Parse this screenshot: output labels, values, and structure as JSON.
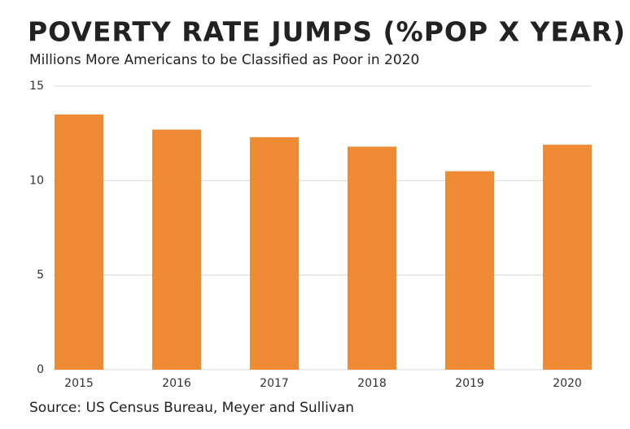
{
  "chart_data": {
    "type": "bar",
    "title": "POVERTY RATE JUMPS (%POP X YEAR)",
    "subtitle": "Millions More Americans to be Classified as Poor in 2020",
    "source": "Source: US Census Bureau, Meyer and Sullivan",
    "categories": [
      "2015",
      "2016",
      "2017",
      "2018",
      "2019",
      "2020"
    ],
    "values": [
      13.5,
      12.7,
      12.3,
      11.8,
      10.5,
      11.9
    ],
    "color": "#ef8a35",
    "ylim": [
      0,
      15
    ],
    "yticks": [
      0,
      5,
      10,
      15
    ],
    "grid": true
  }
}
